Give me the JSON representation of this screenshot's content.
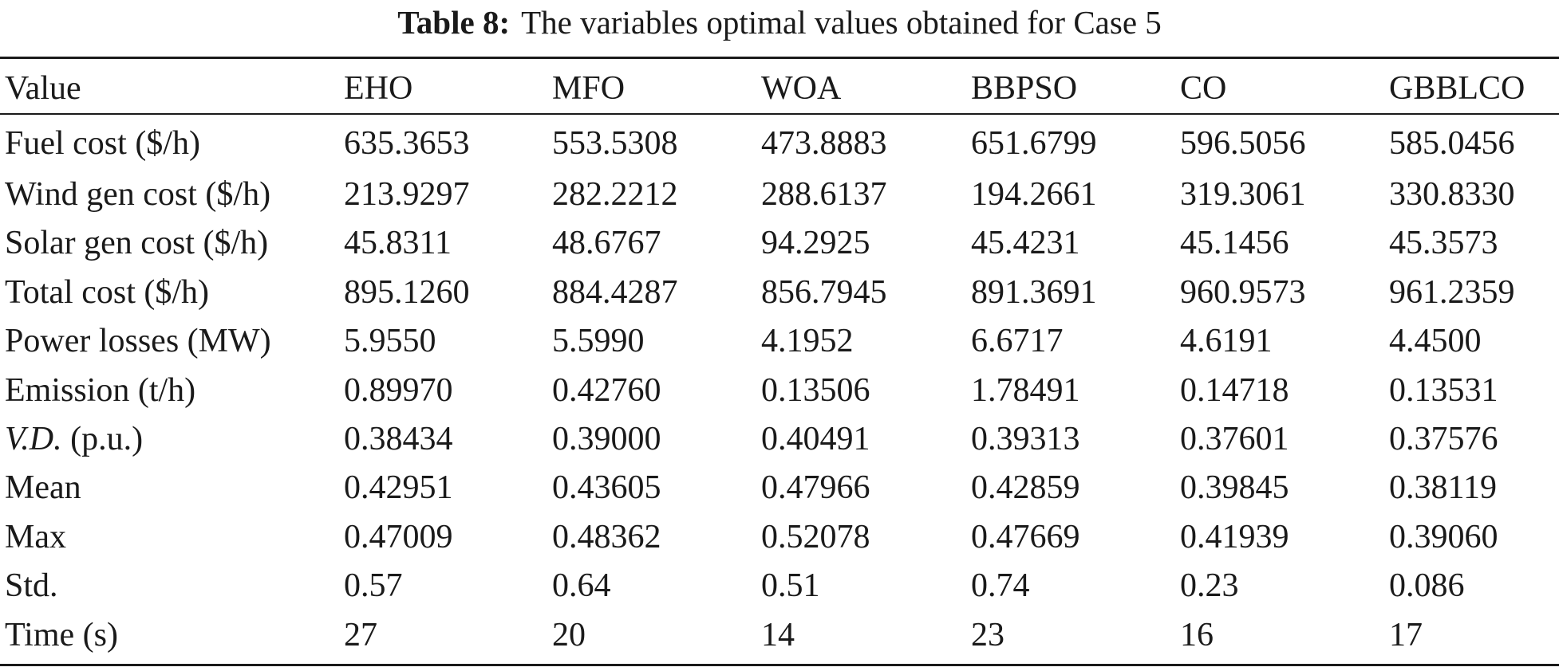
{
  "caption": {
    "label": "Table 8:",
    "text": "The variables optimal values obtained for Case 5"
  },
  "table": {
    "headers": [
      "Value",
      "EHO",
      "MFO",
      "WOA",
      "BBPSO",
      "CO",
      "GBBLCO"
    ],
    "rows": [
      {
        "label": "Fuel cost ($/h)",
        "values": [
          "635.3653",
          "553.5308",
          "473.8883",
          "651.6799",
          "596.5056",
          "585.0456"
        ]
      },
      {
        "label": "Wind gen cost ($/h)",
        "values": [
          "213.9297",
          "282.2212",
          "288.6137",
          "194.2661",
          "319.3061",
          "330.8330"
        ]
      },
      {
        "label": "Solar gen cost ($/h)",
        "values": [
          "45.8311",
          "48.6767",
          "94.2925",
          "45.4231",
          "45.1456",
          "45.3573"
        ]
      },
      {
        "label": "Total cost ($/h)",
        "values": [
          "895.1260",
          "884.4287",
          "856.7945",
          "891.3691",
          "960.9573",
          "961.2359"
        ]
      },
      {
        "label": "Power losses (MW)",
        "values": [
          "5.9550",
          "5.5990",
          "4.1952",
          "6.6717",
          "4.6191",
          "4.4500"
        ]
      },
      {
        "label": "Emission (t/h)",
        "values": [
          "0.89970",
          "0.42760",
          "0.13506",
          "1.78491",
          "0.14718",
          "0.13531"
        ]
      },
      {
        "label_italic": "V.D.",
        "label_rest": " (p.u.)",
        "values": [
          "0.38434",
          "0.39000",
          "0.40491",
          "0.39313",
          "0.37601",
          "0.37576"
        ]
      },
      {
        "label": "Mean",
        "values": [
          "0.42951",
          "0.43605",
          "0.47966",
          "0.42859",
          "0.39845",
          "0.38119"
        ]
      },
      {
        "label": "Max",
        "values": [
          "0.47009",
          "0.48362",
          "0.52078",
          "0.47669",
          "0.41939",
          "0.39060"
        ]
      },
      {
        "label": "Std.",
        "values": [
          "0.57",
          "0.64",
          "0.51",
          "0.74",
          "0.23",
          "0.086"
        ]
      },
      {
        "label": "Time (s)",
        "values": [
          "27",
          "20",
          "14",
          "23",
          "16",
          "17"
        ]
      }
    ]
  }
}
